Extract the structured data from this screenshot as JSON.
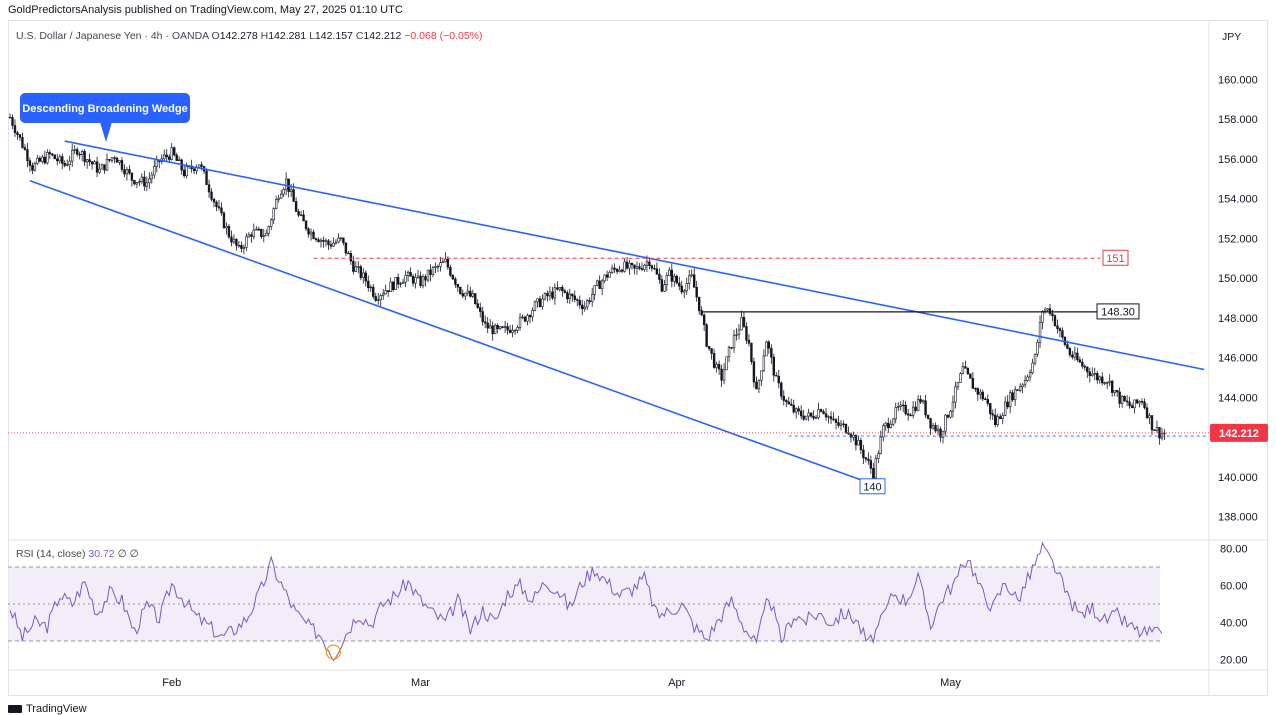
{
  "header": {
    "publisher": "GoldPredictorsAnalysis published on TradingView.com, May 27, 2025 01:10 UTC"
  },
  "legend": {
    "symbol": "U.S. Dollar / Japanese Yen · 4h · OANDA",
    "o_label": "O",
    "o": "142.278",
    "h_label": "H",
    "h": "142.281",
    "l_label": "L",
    "l": "142.157",
    "c_label": "C",
    "c": "142.212",
    "change": "−0.068 (−0.05%)"
  },
  "rsi_legend": {
    "label": "RSI (14, close)",
    "value": "30.72",
    "extra": "∅ ∅"
  },
  "currency": "JPY",
  "footer": {
    "brand": "TradingView"
  },
  "colors": {
    "up": "#089981",
    "down": "#f23645",
    "candle": "#131722",
    "trendline": "#2962ff",
    "resistance": "#131722",
    "dashed_red": "#f23645",
    "rsi": "#7e57c2",
    "rsi_band": "#ede7f6",
    "last_price": "#f23645",
    "wedge_label_bg": "#2962ff"
  },
  "chart_data": [
    {
      "type": "candlestick",
      "title": "U.S. Dollar / Japanese Yen · 4h · OANDA",
      "ylim": [
        136.5,
        162.5
      ],
      "y_ticks": [
        "138.000",
        "140.000",
        "142.000",
        "144.000",
        "146.000",
        "148.000",
        "150.000",
        "152.000",
        "154.000",
        "156.000",
        "158.000",
        "160.000"
      ],
      "x_labels": [
        "Feb",
        "Mar",
        "Apr",
        "May"
      ],
      "close_path": [
        [
          0,
          158.1
        ],
        [
          4,
          157.0
        ],
        [
          9,
          155.6
        ],
        [
          16,
          156.2
        ],
        [
          22,
          155.7
        ],
        [
          27,
          156.5
        ],
        [
          31,
          156.0
        ],
        [
          36,
          155.4
        ],
        [
          42,
          156.2
        ],
        [
          49,
          155.0
        ],
        [
          55,
          154.8
        ],
        [
          60,
          155.9
        ],
        [
          65,
          156.3
        ],
        [
          70,
          155.3
        ],
        [
          76,
          155.8
        ],
        [
          83,
          153.6
        ],
        [
          88,
          152.2
        ],
        [
          92,
          151.4
        ],
        [
          97,
          152.3
        ],
        [
          103,
          152.2
        ],
        [
          108,
          154.3
        ],
        [
          111,
          154.9
        ],
        [
          116,
          153.1
        ],
        [
          121,
          152.3
        ],
        [
          128,
          151.7
        ],
        [
          133,
          151.9
        ],
        [
          138,
          150.6
        ],
        [
          143,
          149.9
        ],
        [
          147,
          149.1
        ],
        [
          153,
          149.6
        ],
        [
          159,
          150.1
        ],
        [
          165,
          149.8
        ],
        [
          170,
          150.4
        ],
        [
          175,
          150.8
        ],
        [
          181,
          149.4
        ],
        [
          186,
          149.0
        ],
        [
          191,
          147.6
        ],
        [
          196,
          147.3
        ],
        [
          200,
          147.4
        ],
        [
          206,
          147.9
        ],
        [
          211,
          148.6
        ],
        [
          216,
          149.1
        ],
        [
          221,
          149.4
        ],
        [
          226,
          149.0
        ],
        [
          231,
          148.6
        ],
        [
          236,
          149.6
        ],
        [
          241,
          150.3
        ],
        [
          246,
          150.6
        ],
        [
          251,
          150.4
        ],
        [
          257,
          150.9
        ],
        [
          262,
          149.6
        ],
        [
          265,
          150.2
        ],
        [
          270,
          149.5
        ],
        [
          274,
          150.0
        ],
        [
          277,
          148.6
        ],
        [
          280,
          146.8
        ],
        [
          284,
          145.4
        ],
        [
          286,
          145.0
        ],
        [
          290,
          146.7
        ],
        [
          294,
          147.8
        ],
        [
          297,
          146.7
        ],
        [
          300,
          144.2
        ],
        [
          304,
          146.9
        ],
        [
          308,
          144.8
        ],
        [
          312,
          143.7
        ],
        [
          316,
          143.2
        ],
        [
          322,
          143.0
        ],
        [
          326,
          143.5
        ],
        [
          331,
          142.7
        ],
        [
          337,
          142.4
        ],
        [
          341,
          141.6
        ],
        [
          344,
          140.9
        ],
        [
          347,
          140.2
        ],
        [
          351,
          142.4
        ],
        [
          357,
          143.4
        ],
        [
          362,
          143.3
        ],
        [
          366,
          143.9
        ],
        [
          370,
          142.7
        ],
        [
          374,
          142.2
        ],
        [
          378,
          143.5
        ],
        [
          383,
          145.4
        ],
        [
          388,
          144.4
        ],
        [
          392,
          143.9
        ],
        [
          396,
          142.7
        ],
        [
          402,
          144.0
        ],
        [
          408,
          144.9
        ],
        [
          412,
          146.0
        ],
        [
          415,
          148.4
        ],
        [
          418,
          148.4
        ],
        [
          422,
          147.2
        ],
        [
          426,
          146.2
        ],
        [
          431,
          145.6
        ],
        [
          437,
          145.0
        ],
        [
          441,
          144.9
        ],
        [
          446,
          143.9
        ],
        [
          451,
          143.5
        ],
        [
          455,
          143.9
        ],
        [
          459,
          142.6
        ],
        [
          462,
          142.2
        ]
      ],
      "total_bars": 465,
      "annotations": [
        {
          "label": "Descending Broadening Wedge"
        },
        {
          "label": "151",
          "y": 151.0
        },
        {
          "label": "148.30",
          "y": 148.3
        },
        {
          "label": "140",
          "y": 140.0
        }
      ],
      "wedge_upper": [
        [
          22,
          156.9
        ],
        [
          480,
          145.4
        ]
      ],
      "wedge_lower": [
        [
          8,
          154.9
        ],
        [
          343,
          139.8
        ]
      ],
      "resistance_148": {
        "y": 148.3,
        "x": [
          278,
          426
        ]
      },
      "level_151": {
        "y": 151.0,
        "x": [
          122,
          435
        ]
      },
      "last_price": "142.212",
      "last_price_value": 142.212
    },
    {
      "type": "line",
      "title": "RSI (14, close)",
      "ylim": [
        17,
        84
      ],
      "y_ticks": [
        "20.00",
        "40.00",
        "60.00",
        "80.00"
      ],
      "bands": [
        30,
        50,
        70
      ],
      "series": [
        {
          "values_path": [
            [
              0,
              48
            ],
            [
              5,
              32
            ],
            [
              10,
              40
            ],
            [
              15,
              38
            ],
            [
              20,
              55
            ],
            [
              25,
              50
            ],
            [
              30,
              62
            ],
            [
              35,
              45
            ],
            [
              40,
              56
            ],
            [
              45,
              52
            ],
            [
              50,
              35
            ],
            [
              55,
              49
            ],
            [
              60,
              42
            ],
            [
              65,
              61
            ],
            [
              70,
              52
            ],
            [
              75,
              43
            ],
            [
              80,
              38
            ],
            [
              85,
              32
            ],
            [
              90,
              36
            ],
            [
              95,
              42
            ],
            [
              100,
              55
            ],
            [
              105,
              72
            ],
            [
              110,
              58
            ],
            [
              115,
              45
            ],
            [
              120,
              38
            ],
            [
              125,
              33
            ],
            [
              130,
              22
            ],
            [
              135,
              34
            ],
            [
              140,
              45
            ],
            [
              145,
              39
            ],
            [
              150,
              50
            ],
            [
              155,
              55
            ],
            [
              160,
              62
            ],
            [
              165,
              52
            ],
            [
              170,
              45
            ],
            [
              175,
              40
            ],
            [
              180,
              52
            ],
            [
              185,
              36
            ],
            [
              190,
              47
            ],
            [
              195,
              40
            ],
            [
              200,
              56
            ],
            [
              205,
              60
            ],
            [
              210,
              52
            ],
            [
              215,
              62
            ],
            [
              220,
              58
            ],
            [
              225,
              48
            ],
            [
              230,
              62
            ],
            [
              235,
              69
            ],
            [
              240,
              62
            ],
            [
              245,
              55
            ],
            [
              250,
              58
            ],
            [
              255,
              64
            ],
            [
              260,
              44
            ],
            [
              265,
              46
            ],
            [
              270,
              50
            ],
            [
              275,
              38
            ],
            [
              280,
              31
            ],
            [
              285,
              42
            ],
            [
              290,
              52
            ],
            [
              295,
              38
            ],
            [
              300,
              28
            ],
            [
              305,
              55
            ],
            [
              310,
              30
            ],
            [
              315,
              44
            ],
            [
              320,
              41
            ],
            [
              325,
              45
            ],
            [
              330,
              40
            ],
            [
              335,
              45
            ],
            [
              340,
              42
            ],
            [
              345,
              28
            ],
            [
              350,
              40
            ],
            [
              355,
              56
            ],
            [
              360,
              52
            ],
            [
              365,
              64
            ],
            [
              370,
              39
            ],
            [
              375,
              54
            ],
            [
              380,
              62
            ],
            [
              385,
              76
            ],
            [
              390,
              58
            ],
            [
              395,
              48
            ],
            [
              400,
              62
            ],
            [
              405,
              52
            ],
            [
              410,
              66
            ],
            [
              415,
              80
            ],
            [
              420,
              70
            ],
            [
              425,
              54
            ],
            [
              430,
              44
            ],
            [
              435,
              48
            ],
            [
              440,
              41
            ],
            [
              445,
              44
            ],
            [
              450,
              38
            ],
            [
              455,
              34
            ],
            [
              460,
              35
            ],
            [
              463,
              31
            ]
          ]
        }
      ],
      "value": 30.72
    }
  ]
}
